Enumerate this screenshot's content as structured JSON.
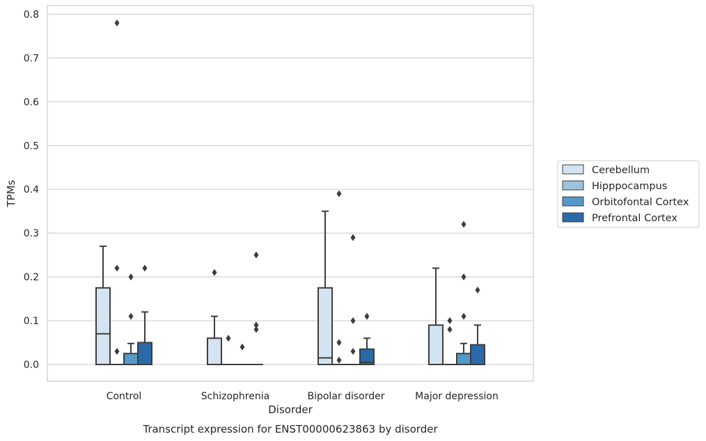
{
  "chart_data": {
    "type": "box",
    "caption": "Transcript expression for ENST00000623863 by disorder",
    "xlabel": "Disorder",
    "ylabel": "TPMs",
    "ylim": [
      -0.04,
      0.82
    ],
    "yticks": [
      0.0,
      0.1,
      0.2,
      0.3,
      0.4,
      0.5,
      0.6,
      0.7,
      0.8
    ],
    "ytick_labels": [
      "0.0",
      "0.1",
      "0.2",
      "0.3",
      "0.4",
      "0.5",
      "0.6",
      "0.7",
      "0.8"
    ],
    "grid": "horizontal",
    "legend_position": "right",
    "categories": [
      "Control",
      "Schizophrenia",
      "Bipolar disorder",
      "Major depression"
    ],
    "series": [
      {
        "name": "Cerebellum",
        "color": "#d4e3f2",
        "boxes": [
          {
            "q1": 0.0,
            "median": 0.07,
            "q3": 0.175,
            "whisker_low": 0.0,
            "whisker_high": 0.27,
            "outliers": []
          },
          {
            "q1": 0.0,
            "median": 0.0,
            "q3": 0.06,
            "whisker_low": 0.0,
            "whisker_high": 0.11,
            "outliers": [
              0.21
            ]
          },
          {
            "q1": 0.0,
            "median": 0.015,
            "q3": 0.175,
            "whisker_low": 0.0,
            "whisker_high": 0.35,
            "outliers": []
          },
          {
            "q1": 0.0,
            "median": 0.0,
            "q3": 0.09,
            "whisker_low": 0.0,
            "whisker_high": 0.22,
            "outliers": []
          }
        ]
      },
      {
        "name": "Hipppocampus",
        "color": "#9cc3dd",
        "boxes": [
          {
            "q1": 0.0,
            "median": 0.0,
            "q3": 0.0,
            "whisker_low": 0.0,
            "whisker_high": 0.0,
            "outliers": [
              0.22,
              0.03,
              0.78
            ]
          },
          {
            "q1": 0.0,
            "median": 0.0,
            "q3": 0.0,
            "whisker_low": 0.0,
            "whisker_high": 0.0,
            "outliers": [
              0.06
            ]
          },
          {
            "q1": 0.0,
            "median": 0.0,
            "q3": 0.0,
            "whisker_low": 0.0,
            "whisker_high": 0.0,
            "outliers": [
              0.39,
              0.05,
              0.01
            ]
          },
          {
            "q1": 0.0,
            "median": 0.0,
            "q3": 0.0,
            "whisker_low": 0.0,
            "whisker_high": 0.0,
            "outliers": [
              0.1,
              0.08
            ]
          }
        ]
      },
      {
        "name": "Orbitofontal Cortex",
        "color": "#5599c8",
        "boxes": [
          {
            "q1": 0.0,
            "median": 0.0,
            "q3": 0.025,
            "whisker_low": 0.0,
            "whisker_high": 0.048,
            "outliers": [
              0.2,
              0.11
            ]
          },
          {
            "q1": 0.0,
            "median": 0.0,
            "q3": 0.0,
            "whisker_low": 0.0,
            "whisker_high": 0.0,
            "outliers": [
              0.04
            ]
          },
          {
            "q1": 0.0,
            "median": 0.0,
            "q3": 0.0,
            "whisker_low": 0.0,
            "whisker_high": 0.0,
            "outliers": [
              0.29,
              0.1,
              0.03
            ]
          },
          {
            "q1": 0.0,
            "median": 0.0,
            "q3": 0.025,
            "whisker_low": 0.0,
            "whisker_high": 0.048,
            "outliers": [
              0.32,
              0.2,
              0.11
            ]
          }
        ]
      },
      {
        "name": "Prefrontal Cortex",
        "color": "#2a6aa9",
        "boxes": [
          {
            "q1": 0.0,
            "median": 0.0,
            "q3": 0.05,
            "whisker_low": 0.0,
            "whisker_high": 0.12,
            "outliers": [
              0.22
            ]
          },
          {
            "q1": 0.0,
            "median": 0.0,
            "q3": 0.0,
            "whisker_low": 0.0,
            "whisker_high": 0.0,
            "outliers": [
              0.25,
              0.09,
              0.08
            ]
          },
          {
            "q1": 0.0,
            "median": 0.005,
            "q3": 0.035,
            "whisker_low": 0.0,
            "whisker_high": 0.06,
            "outliers": [
              0.11
            ]
          },
          {
            "q1": 0.0,
            "median": 0.0,
            "q3": 0.045,
            "whisker_low": 0.0,
            "whisker_high": 0.09,
            "outliers": [
              0.17
            ]
          }
        ]
      }
    ]
  }
}
